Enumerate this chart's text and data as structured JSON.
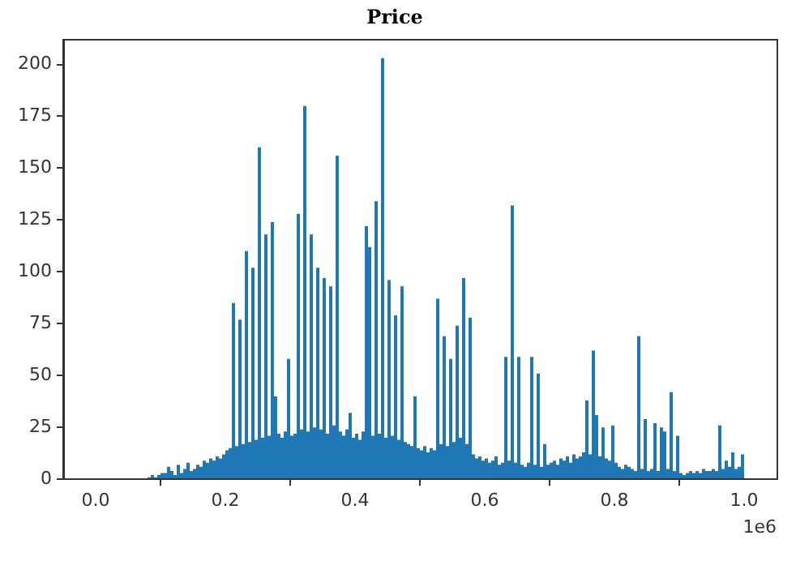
{
  "chart_data": {
    "type": "histogram",
    "title": "Price",
    "bins": [
      0.08,
      0.085,
      0.09,
      0.095,
      0.1,
      0.105,
      0.11,
      0.115,
      0.12,
      0.125,
      0.13,
      0.135,
      0.14,
      0.145,
      0.15,
      0.155,
      0.16,
      0.165,
      0.17,
      0.175,
      0.18,
      0.185,
      0.19,
      0.195,
      0.2,
      0.205,
      0.21,
      0.215,
      0.22,
      0.225,
      0.23,
      0.235,
      0.24,
      0.245,
      0.25,
      0.255,
      0.26,
      0.265,
      0.27,
      0.275,
      0.28,
      0.285,
      0.29,
      0.295,
      0.3,
      0.305,
      0.31,
      0.315,
      0.32,
      0.325,
      0.33,
      0.335,
      0.34,
      0.345,
      0.35,
      0.355,
      0.36,
      0.365,
      0.37,
      0.375,
      0.38,
      0.385,
      0.39,
      0.395,
      0.4,
      0.405,
      0.41,
      0.415,
      0.42,
      0.425,
      0.43,
      0.435,
      0.44,
      0.445,
      0.45,
      0.455,
      0.46,
      0.465,
      0.47,
      0.475,
      0.48,
      0.485,
      0.49,
      0.495,
      0.5,
      0.505,
      0.51,
      0.515,
      0.52,
      0.525,
      0.53,
      0.535,
      0.54,
      0.545,
      0.55,
      0.555,
      0.56,
      0.565,
      0.57,
      0.575,
      0.58,
      0.585,
      0.59,
      0.595,
      0.6,
      0.605,
      0.61,
      0.615,
      0.62,
      0.625,
      0.63,
      0.635,
      0.64,
      0.645,
      0.65,
      0.655,
      0.66,
      0.665,
      0.67,
      0.675,
      0.68,
      0.685,
      0.69,
      0.695,
      0.7,
      0.705,
      0.71,
      0.715,
      0.72,
      0.725,
      0.73,
      0.735,
      0.74,
      0.745,
      0.75,
      0.755,
      0.76,
      0.765,
      0.77,
      0.775,
      0.78,
      0.785,
      0.79,
      0.795,
      0.8,
      0.805,
      0.81,
      0.815,
      0.82,
      0.825,
      0.83,
      0.835,
      0.84,
      0.845,
      0.85,
      0.855,
      0.86,
      0.865,
      0.87,
      0.875,
      0.88,
      0.885,
      0.89,
      0.895,
      0.9,
      0.905,
      0.91,
      0.915,
      0.92,
      0.925,
      0.93,
      0.935,
      0.94,
      0.945,
      0.95,
      0.955,
      0.96,
      0.965,
      0.97,
      0.975,
      0.98,
      0.985,
      0.99,
      0.995,
      1
    ],
    "values": [
      1,
      2,
      1,
      2,
      3,
      3,
      6,
      4,
      2,
      7,
      3,
      5,
      8,
      4,
      5,
      7,
      6,
      9,
      8,
      10,
      9,
      11,
      10,
      12,
      14,
      15,
      85,
      16,
      77,
      17,
      110,
      18,
      102,
      19,
      160,
      20,
      118,
      21,
      124,
      40,
      22,
      20,
      23,
      58,
      21,
      22,
      128,
      24,
      180,
      23,
      118,
      25,
      102,
      24,
      97,
      22,
      93,
      26,
      156,
      23,
      21,
      24,
      32,
      20,
      22,
      19,
      23,
      122,
      112,
      21,
      134,
      22,
      203,
      20,
      96,
      21,
      79,
      19,
      93,
      18,
      17,
      16,
      40,
      15,
      14,
      16,
      13,
      15,
      14,
      87,
      17,
      69,
      16,
      58,
      18,
      74,
      20,
      97,
      17,
      78,
      12,
      10,
      11,
      9,
      10,
      8,
      9,
      11,
      7,
      8,
      59,
      9,
      132,
      8,
      59,
      7,
      6,
      8,
      59,
      7,
      51,
      6,
      17,
      7,
      8,
      9,
      7,
      10,
      9,
      11,
      8,
      12,
      10,
      11,
      13,
      38,
      12,
      62,
      31,
      11,
      25,
      10,
      9,
      26,
      8,
      6,
      5,
      7,
      6,
      5,
      4,
      69,
      5,
      29,
      4,
      5,
      27,
      4,
      25,
      23,
      5,
      42,
      4,
      21,
      3,
      2,
      3,
      4,
      3,
      4,
      3,
      5,
      4,
      4,
      5,
      4,
      26,
      5,
      9,
      6,
      13,
      5,
      6,
      12
    ],
    "color": "#1f77b4",
    "xlim": [
      -0.05,
      1.05
    ],
    "xticks": [
      {
        "value": 0,
        "label": "0.0"
      },
      0.2,
      0.4,
      0.6,
      0.8,
      {
        "value": 1,
        "label": "1.0"
      }
    ],
    "xlabel": "1e6",
    "ylim": [
      0,
      212
    ],
    "yticks": [
      0,
      25,
      50,
      75,
      100,
      125,
      150,
      175,
      200
    ],
    "grid": false,
    "legend": false
  }
}
